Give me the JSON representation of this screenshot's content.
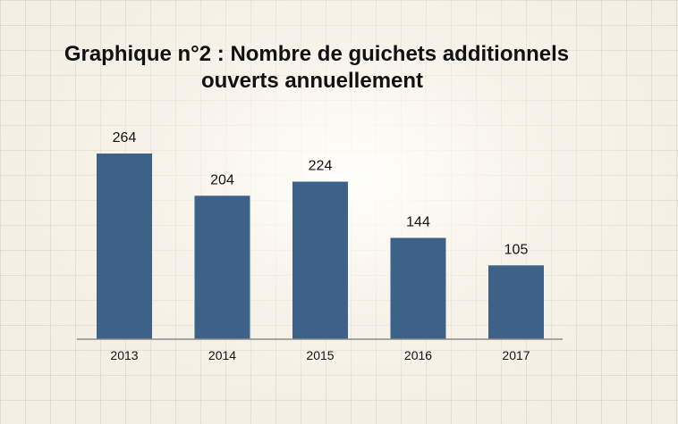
{
  "chart_data": {
    "type": "bar",
    "title_line1": "Graphique n°2 : Nombre de guichets additionnels",
    "title_line2": "ouverts annuellement",
    "categories": [
      "2013",
      "2014",
      "2015",
      "2016",
      "2017"
    ],
    "values": [
      264,
      204,
      224,
      144,
      105
    ],
    "data_labels": [
      "264",
      "204",
      "224",
      "144",
      "105"
    ],
    "xlabel": "",
    "ylabel": "",
    "ylim": [
      0,
      264
    ],
    "grid": false,
    "legend": "none",
    "bar_color": "#3e6187",
    "axis_color": "#8c8c8c"
  }
}
